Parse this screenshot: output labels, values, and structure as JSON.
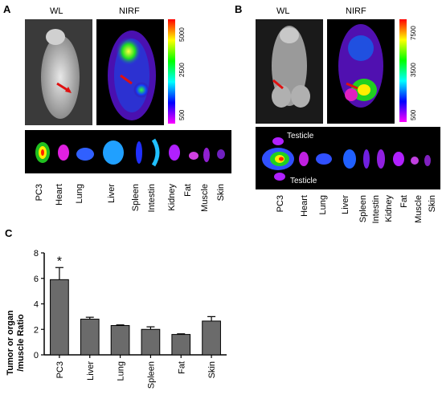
{
  "panel_a": {
    "letter": "A",
    "label_wl": "WL",
    "label_nirf": "NIRF",
    "colorbar_ticks": [
      "5000",
      "2500",
      "500"
    ],
    "organs": [
      "PC3",
      "Heart",
      "Lung",
      "Liver",
      "Spleen",
      "Intestin",
      "Kidney",
      "Fat",
      "Muscle",
      "Skin"
    ]
  },
  "panel_b": {
    "letter": "B",
    "label_wl": "WL",
    "label_nirf": "NIRF",
    "colorbar_ticks": [
      "7500",
      "3500",
      "500"
    ],
    "testicle_top": "Testicle",
    "testicle_bottom": "Testicle",
    "organs": [
      "PC3",
      "Heart",
      "Lung",
      "Liver",
      "Spleen",
      "Intestin",
      "Kidney",
      "Fat",
      "Muscle",
      "Skin"
    ]
  },
  "panel_c": {
    "letter": "C"
  },
  "chart_data": {
    "type": "bar",
    "categories": [
      "PC3",
      "Liver",
      "Lung",
      "Spleen",
      "Fat",
      "Skin"
    ],
    "values": [
      5.9,
      2.8,
      2.3,
      2.0,
      1.6,
      2.65
    ],
    "errors": [
      0.95,
      0.15,
      0.05,
      0.2,
      0.05,
      0.35
    ],
    "ylabel_line1": "Tumor or organ",
    "ylabel_line2": "/muscle Ratio",
    "ylim": [
      0,
      8
    ],
    "yticks": [
      "0",
      "2",
      "4",
      "6",
      "8"
    ],
    "significance": "*",
    "bar_color": "#6b6b6b"
  }
}
